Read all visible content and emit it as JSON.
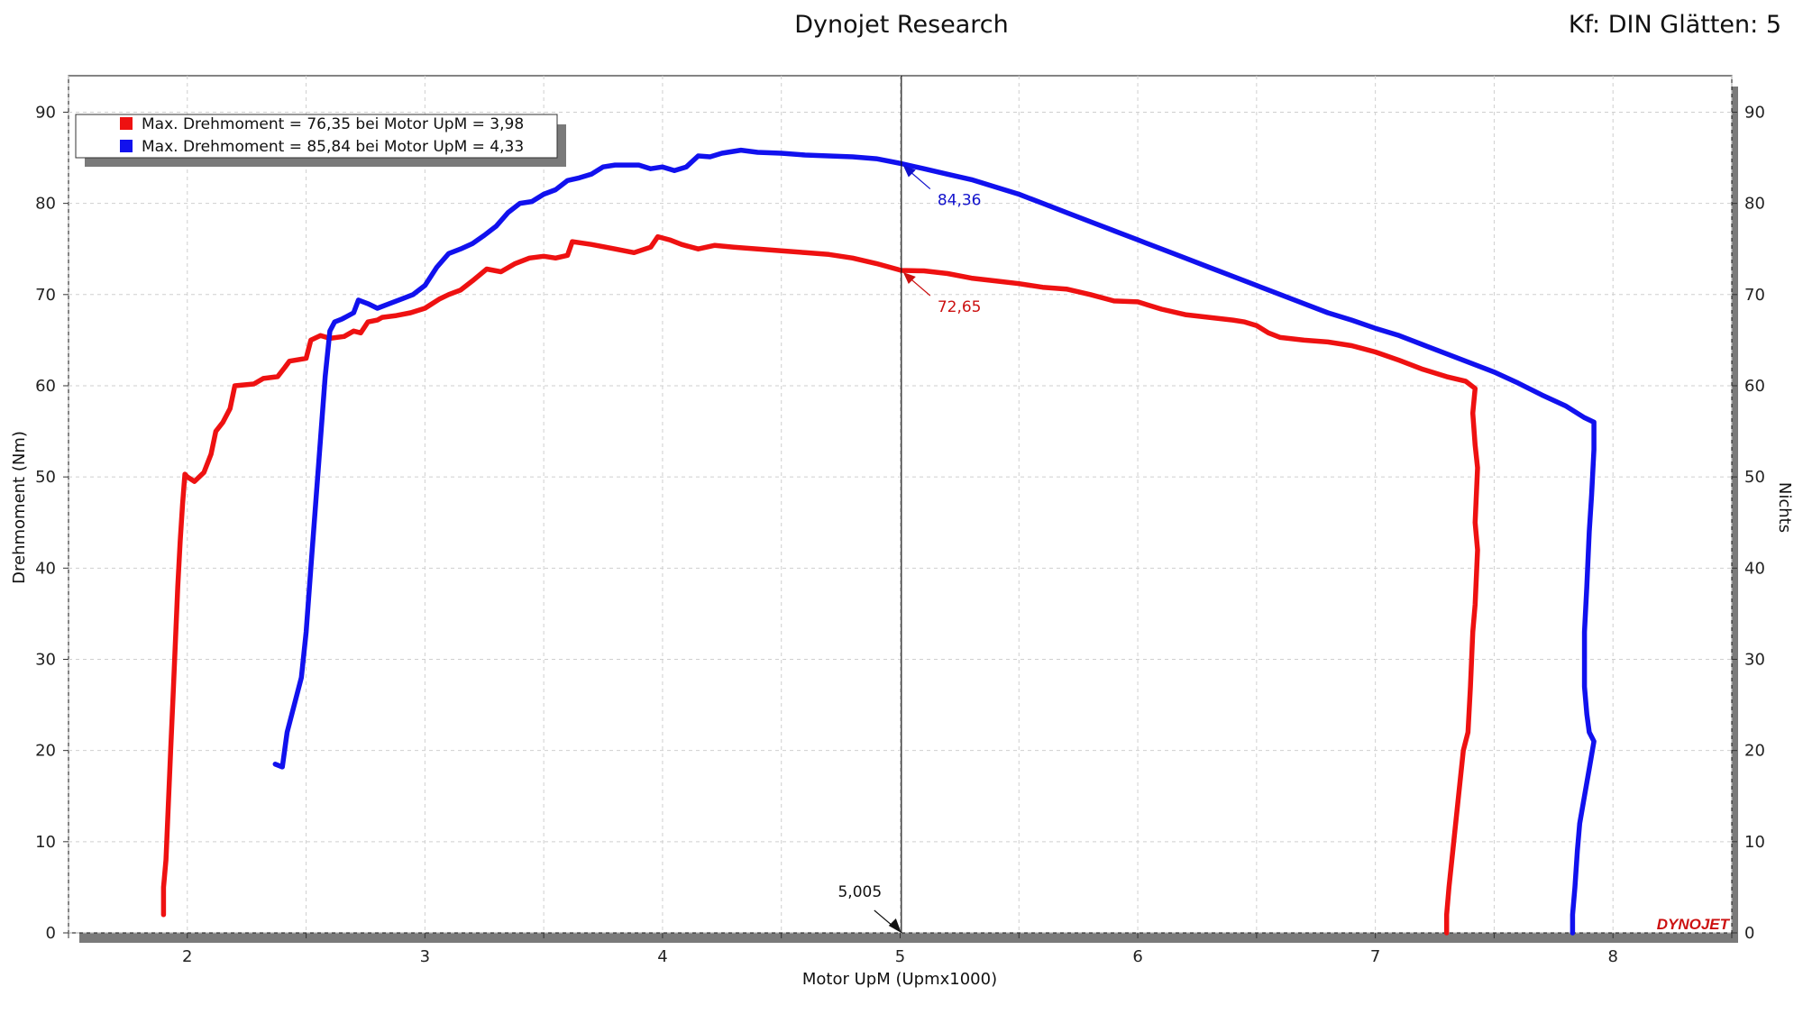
{
  "header": {
    "title": "Dynojet Research",
    "right_info": "Kf: DIN Glätten: 5"
  },
  "logo_text": "DYNOJET",
  "chart_data": {
    "type": "line",
    "xlabel": "Motor UpM (Upmx1000)",
    "ylabel": "Drehmoment (Nm)",
    "y2label": "Nichts",
    "xlim": [
      1.5,
      8.5
    ],
    "ylim": [
      0,
      94
    ],
    "x_ticks": [
      "2",
      "3",
      "4",
      "5",
      "6",
      "7",
      "8"
    ],
    "y_ticks": [
      "0",
      "10",
      "20",
      "30",
      "40",
      "50",
      "60",
      "70",
      "80",
      "90"
    ],
    "y2_ticks": [
      "0",
      "10",
      "20",
      "30",
      "40",
      "50",
      "60",
      "70",
      "80",
      "90"
    ],
    "grid": true,
    "legend_position": "top-left",
    "legend": [
      {
        "text": "Max. Drehmoment = 76,35 bei Motor UpM = 3,98",
        "color": "#ee1111"
      },
      {
        "text": "Max. Drehmoment = 85,84 bei Motor UpM = 4,33",
        "color": "#1111ee"
      }
    ],
    "cursor": {
      "x": 5.005,
      "label": "5,005"
    },
    "annotations": [
      {
        "text": "84,36",
        "x": 5.005,
        "y": 84.36,
        "color": "#1111cc"
      },
      {
        "text": "72,65",
        "x": 5.005,
        "y": 72.65,
        "color": "#cc1111"
      }
    ],
    "series": [
      {
        "color": "#ee1111",
        "points": [
          [
            1.9,
            2
          ],
          [
            1.9,
            5
          ],
          [
            1.91,
            8
          ],
          [
            1.92,
            14
          ],
          [
            1.93,
            20
          ],
          [
            1.94,
            26
          ],
          [
            1.95,
            32
          ],
          [
            1.96,
            38
          ],
          [
            1.97,
            43
          ],
          [
            1.98,
            47
          ],
          [
            1.99,
            50.3
          ],
          [
            2.0,
            50
          ],
          [
            2.03,
            49.5
          ],
          [
            2.07,
            50.5
          ],
          [
            2.1,
            52.5
          ],
          [
            2.12,
            55
          ],
          [
            2.15,
            56
          ],
          [
            2.18,
            57.5
          ],
          [
            2.2,
            60
          ],
          [
            2.28,
            60.2
          ],
          [
            2.32,
            60.8
          ],
          [
            2.38,
            61
          ],
          [
            2.41,
            62
          ],
          [
            2.43,
            62.7
          ],
          [
            2.5,
            63
          ],
          [
            2.52,
            65
          ],
          [
            2.56,
            65.5
          ],
          [
            2.6,
            65.2
          ],
          [
            2.66,
            65.4
          ],
          [
            2.7,
            66
          ],
          [
            2.73,
            65.8
          ],
          [
            2.76,
            67
          ],
          [
            2.8,
            67.2
          ],
          [
            2.82,
            67.5
          ],
          [
            2.88,
            67.7
          ],
          [
            2.94,
            68
          ],
          [
            3.0,
            68.5
          ],
          [
            3.06,
            69.5
          ],
          [
            3.1,
            70
          ],
          [
            3.15,
            70.5
          ],
          [
            3.2,
            71.5
          ],
          [
            3.26,
            72.8
          ],
          [
            3.32,
            72.5
          ],
          [
            3.38,
            73.4
          ],
          [
            3.44,
            74
          ],
          [
            3.5,
            74.2
          ],
          [
            3.55,
            74
          ],
          [
            3.6,
            74.3
          ],
          [
            3.62,
            75.8
          ],
          [
            3.7,
            75.5
          ],
          [
            3.8,
            75
          ],
          [
            3.88,
            74.6
          ],
          [
            3.95,
            75.2
          ],
          [
            3.98,
            76.35
          ],
          [
            4.03,
            76
          ],
          [
            4.08,
            75.5
          ],
          [
            4.15,
            75
          ],
          [
            4.22,
            75.4
          ],
          [
            4.3,
            75.2
          ],
          [
            4.4,
            75
          ],
          [
            4.5,
            74.8
          ],
          [
            4.6,
            74.6
          ],
          [
            4.7,
            74.4
          ],
          [
            4.8,
            74
          ],
          [
            4.9,
            73.4
          ],
          [
            5.005,
            72.65
          ],
          [
            5.1,
            72.6
          ],
          [
            5.2,
            72.3
          ],
          [
            5.3,
            71.8
          ],
          [
            5.4,
            71.5
          ],
          [
            5.5,
            71.2
          ],
          [
            5.6,
            70.8
          ],
          [
            5.7,
            70.6
          ],
          [
            5.8,
            70
          ],
          [
            5.9,
            69.3
          ],
          [
            6.0,
            69.2
          ],
          [
            6.1,
            68.4
          ],
          [
            6.2,
            67.8
          ],
          [
            6.3,
            67.5
          ],
          [
            6.4,
            67.2
          ],
          [
            6.45,
            67
          ],
          [
            6.5,
            66.6
          ],
          [
            6.55,
            65.8
          ],
          [
            6.6,
            65.3
          ],
          [
            6.7,
            65
          ],
          [
            6.8,
            64.8
          ],
          [
            6.9,
            64.4
          ],
          [
            7.0,
            63.7
          ],
          [
            7.1,
            62.8
          ],
          [
            7.2,
            61.8
          ],
          [
            7.3,
            61
          ],
          [
            7.38,
            60.5
          ],
          [
            7.42,
            59.7
          ],
          [
            7.41,
            57
          ],
          [
            7.42,
            53.5
          ],
          [
            7.43,
            51
          ],
          [
            7.42,
            45
          ],
          [
            7.43,
            42
          ],
          [
            7.42,
            36
          ],
          [
            7.41,
            33
          ],
          [
            7.4,
            27
          ],
          [
            7.39,
            22
          ],
          [
            7.37,
            20
          ],
          [
            7.35,
            15
          ],
          [
            7.33,
            10
          ],
          [
            7.31,
            5
          ],
          [
            7.3,
            2
          ],
          [
            7.3,
            0
          ]
        ]
      },
      {
        "color": "#1111ee",
        "points": [
          [
            2.37,
            18.5
          ],
          [
            2.4,
            18.2
          ],
          [
            2.42,
            22
          ],
          [
            2.45,
            25
          ],
          [
            2.48,
            28
          ],
          [
            2.5,
            33
          ],
          [
            2.52,
            40
          ],
          [
            2.54,
            47
          ],
          [
            2.56,
            54
          ],
          [
            2.58,
            61
          ],
          [
            2.6,
            66
          ],
          [
            2.62,
            67
          ],
          [
            2.65,
            67.3
          ],
          [
            2.7,
            68
          ],
          [
            2.72,
            69.4
          ],
          [
            2.76,
            69
          ],
          [
            2.8,
            68.5
          ],
          [
            2.85,
            69
          ],
          [
            2.9,
            69.5
          ],
          [
            2.95,
            70
          ],
          [
            3.0,
            71
          ],
          [
            3.05,
            73
          ],
          [
            3.1,
            74.5
          ],
          [
            3.15,
            75
          ],
          [
            3.2,
            75.6
          ],
          [
            3.25,
            76.5
          ],
          [
            3.3,
            77.5
          ],
          [
            3.35,
            79
          ],
          [
            3.4,
            80
          ],
          [
            3.45,
            80.2
          ],
          [
            3.5,
            81
          ],
          [
            3.55,
            81.5
          ],
          [
            3.6,
            82.5
          ],
          [
            3.65,
            82.8
          ],
          [
            3.7,
            83.2
          ],
          [
            3.75,
            84
          ],
          [
            3.8,
            84.2
          ],
          [
            3.9,
            84.2
          ],
          [
            3.95,
            83.8
          ],
          [
            4.0,
            84
          ],
          [
            4.05,
            83.6
          ],
          [
            4.1,
            84
          ],
          [
            4.15,
            85.2
          ],
          [
            4.2,
            85.1
          ],
          [
            4.25,
            85.5
          ],
          [
            4.33,
            85.84
          ],
          [
            4.4,
            85.6
          ],
          [
            4.5,
            85.5
          ],
          [
            4.6,
            85.3
          ],
          [
            4.7,
            85.2
          ],
          [
            4.8,
            85.1
          ],
          [
            4.9,
            84.9
          ],
          [
            5.005,
            84.36
          ],
          [
            5.1,
            83.8
          ],
          [
            5.2,
            83.2
          ],
          [
            5.3,
            82.6
          ],
          [
            5.4,
            81.8
          ],
          [
            5.5,
            81
          ],
          [
            5.6,
            80
          ],
          [
            5.7,
            79
          ],
          [
            5.8,
            78
          ],
          [
            5.9,
            77
          ],
          [
            6.0,
            76
          ],
          [
            6.1,
            75
          ],
          [
            6.2,
            74
          ],
          [
            6.3,
            73
          ],
          [
            6.4,
            72
          ],
          [
            6.5,
            71
          ],
          [
            6.6,
            70
          ],
          [
            6.7,
            69
          ],
          [
            6.8,
            68
          ],
          [
            6.9,
            67.2
          ],
          [
            7.0,
            66.3
          ],
          [
            7.1,
            65.5
          ],
          [
            7.2,
            64.5
          ],
          [
            7.3,
            63.5
          ],
          [
            7.4,
            62.5
          ],
          [
            7.5,
            61.5
          ],
          [
            7.6,
            60.3
          ],
          [
            7.7,
            59
          ],
          [
            7.8,
            57.8
          ],
          [
            7.88,
            56.5
          ],
          [
            7.92,
            56
          ],
          [
            7.92,
            53
          ],
          [
            7.91,
            48
          ],
          [
            7.9,
            44
          ],
          [
            7.89,
            38
          ],
          [
            7.88,
            33
          ],
          [
            7.88,
            27
          ],
          [
            7.89,
            24
          ],
          [
            7.9,
            22
          ],
          [
            7.92,
            21
          ],
          [
            7.9,
            18
          ],
          [
            7.88,
            15
          ],
          [
            7.86,
            12
          ],
          [
            7.85,
            9
          ],
          [
            7.84,
            5
          ],
          [
            7.83,
            2
          ],
          [
            7.83,
            0
          ]
        ]
      }
    ]
  }
}
